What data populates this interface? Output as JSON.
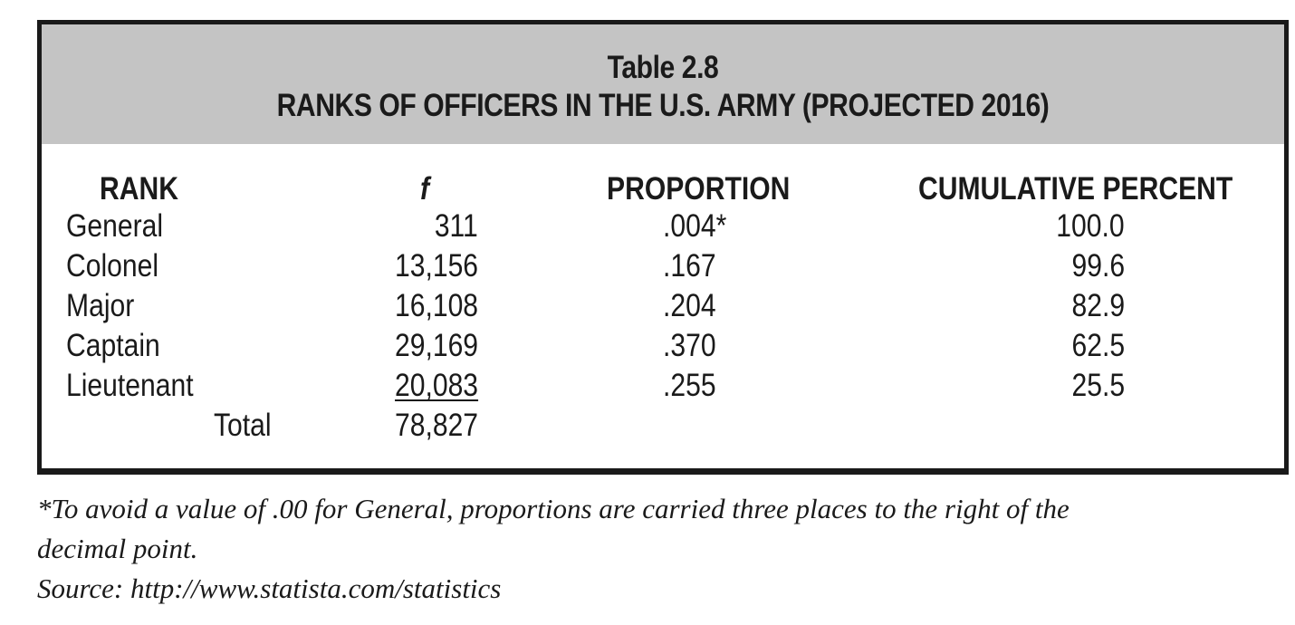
{
  "table": {
    "title": "Table 2.8",
    "subtitle": "RANKS OF OFFICERS IN THE U.S. ARMY  (PROJECTED 2016)",
    "headers": {
      "rank": "RANK",
      "f": "f",
      "proportion": "PROPORTION",
      "cumulative": "CUMULATIVE PERCENT"
    },
    "rows": [
      {
        "rank": "General",
        "f": "311",
        "proportion": ".004*",
        "cumulative": "100.0"
      },
      {
        "rank": "Colonel",
        "f": "13,156",
        "proportion": ".167",
        "cumulative": "99.6"
      },
      {
        "rank": "Major",
        "f": "16,108",
        "proportion": ".204",
        "cumulative": "82.9"
      },
      {
        "rank": "Captain",
        "f": "29,169",
        "proportion": ".370",
        "cumulative": "62.5"
      },
      {
        "rank": "Lieutenant",
        "f": "20,083",
        "proportion": ".255",
        "cumulative": "25.5"
      }
    ],
    "total": {
      "label": "Total",
      "value": "78,827"
    }
  },
  "footnotes": {
    "line1": "*To avoid a value of .00 for General, proportions are carried three places to the right of the",
    "line2": "decimal point.",
    "source": "Source: http://www.statista.com/statistics"
  },
  "colors": {
    "title_band": "#c4c4c4",
    "border": "#1a1a1a",
    "text": "#1a1a1a"
  }
}
